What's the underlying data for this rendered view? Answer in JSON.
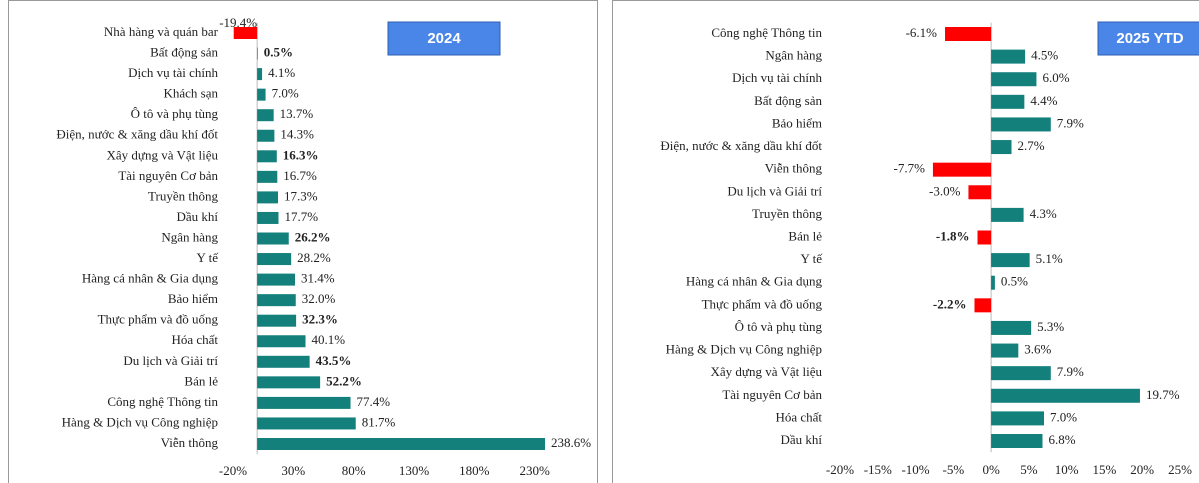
{
  "chart_data": [
    {
      "type": "bar",
      "orientation": "horizontal",
      "title": "2024",
      "categories": [
        "Nhà hàng và quán bar",
        "Bất động sản",
        "Dịch vụ tài chính",
        "Khách sạn",
        "Ô tô và phụ tùng",
        "Điện, nước & xăng dầu khí đốt",
        "Xây dựng và Vật liệu",
        "Tài nguyên Cơ bản",
        "Truyền thông",
        "Dầu khí",
        "Ngân hàng",
        "Y tế",
        "Hàng cá nhân & Gia dụng",
        "Bảo hiểm",
        "Thực phẩm và đồ uống",
        "Hóa chất",
        "Du lịch và Giải trí",
        "Bán lẻ",
        "Công nghệ Thông tin",
        "Hàng & Dịch vụ Công nghiệp",
        "Viễn thông"
      ],
      "values": [
        -19.4,
        0.5,
        4.1,
        7.0,
        13.7,
        14.3,
        16.3,
        16.7,
        17.3,
        17.7,
        26.2,
        28.2,
        31.4,
        32.0,
        32.3,
        40.1,
        43.5,
        52.2,
        77.4,
        81.7,
        238.6
      ],
      "value_labels": [
        "-19.4%",
        "0.5%",
        "4.1%",
        "7.0%",
        "13.7%",
        "14.3%",
        "16.3%",
        "16.7%",
        "17.3%",
        "17.7%",
        "26.2%",
        "28.2%",
        "31.4%",
        "32.0%",
        "32.3%",
        "40.1%",
        "43.5%",
        "52.2%",
        "77.4%",
        "81.7%",
        "238.6%"
      ],
      "value_label_bold": [
        false,
        true,
        false,
        false,
        false,
        false,
        true,
        false,
        false,
        false,
        true,
        false,
        false,
        false,
        true,
        false,
        true,
        true,
        false,
        false,
        false
      ],
      "color": "#13807c",
      "negative_color": "#ff0000",
      "xlim": [
        -20,
        280
      ],
      "xticks": [
        {
          "value": -20,
          "label": "-20%"
        },
        {
          "value": 30,
          "label": "30%"
        },
        {
          "value": 80,
          "label": "80%"
        },
        {
          "value": 130,
          "label": "130%"
        },
        {
          "value": 180,
          "label": "180%"
        },
        {
          "value": 230,
          "label": "230%"
        }
      ]
    },
    {
      "type": "bar",
      "orientation": "horizontal",
      "title": "2025 YTD",
      "categories": [
        "Công nghệ Thông tin",
        "Ngân hàng",
        "Dịch vụ tài chính",
        "Bất động sản",
        "Bảo hiểm",
        "Điện, nước & xăng dầu khí đốt",
        "Viễn thông",
        "Du lịch và Giải trí",
        "Truyền thông",
        "Bán lẻ",
        "Y tế",
        "Hàng cá nhân & Gia dụng",
        "Thực phẩm và đồ uống",
        "Ô tô và phụ tùng",
        "Hàng & Dịch vụ Công nghiệp",
        "Xây dựng và Vật liệu",
        "Tài nguyên Cơ bản",
        "Hóa chất",
        "Dầu khí"
      ],
      "values": [
        -6.1,
        4.5,
        6.0,
        4.4,
        7.9,
        2.7,
        -7.7,
        -3.0,
        4.3,
        -1.8,
        5.1,
        0.5,
        -2.2,
        5.3,
        3.6,
        7.9,
        19.7,
        7.0,
        6.8
      ],
      "value_labels": [
        "-6.1%",
        "4.5%",
        "6.0%",
        "4.4%",
        "7.9%",
        "2.7%",
        "-7.7%",
        "-3.0%",
        "4.3%",
        "-1.8%",
        "5.1%",
        "0.5%",
        "-2.2%",
        "5.3%",
        "3.6%",
        "7.9%",
        "19.7%",
        "7.0%",
        "6.8%"
      ],
      "value_label_bold": [
        false,
        false,
        false,
        false,
        false,
        false,
        false,
        false,
        false,
        true,
        false,
        false,
        true,
        false,
        false,
        false,
        false,
        false,
        false
      ],
      "color": "#13807c",
      "negative_color": "#ff0000",
      "xlim": [
        -20,
        25
      ],
      "xticks": [
        {
          "value": -20,
          "label": "-20%"
        },
        {
          "value": -15,
          "label": "-15%"
        },
        {
          "value": -10,
          "label": "-10%"
        },
        {
          "value": -5,
          "label": "-5%"
        },
        {
          "value": 0,
          "label": "0%"
        },
        {
          "value": 5,
          "label": "5%"
        },
        {
          "value": 10,
          "label": "10%"
        },
        {
          "value": 15,
          "label": "15%"
        },
        {
          "value": 20,
          "label": "20%"
        },
        {
          "value": 25,
          "label": "25%"
        }
      ]
    }
  ]
}
